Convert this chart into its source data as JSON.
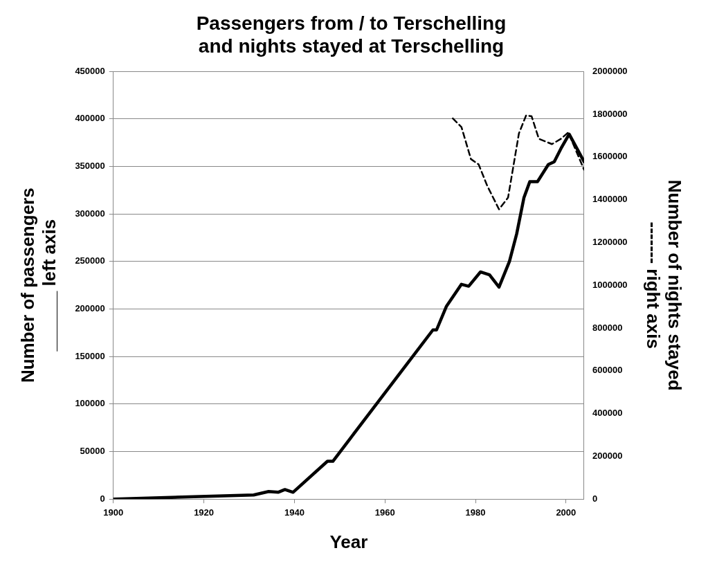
{
  "chart_data": {
    "type": "line",
    "title": "Passengers from / to Terschelling\nand nights stayed at Terschelling",
    "xlabel": "Year",
    "ylabel": "Number of passengers\n______ left axis",
    "y2label": "Number of nights stayed\n------- right axis",
    "xlim": [
      1900,
      2004
    ],
    "xticks": [
      1900,
      1920,
      1940,
      1960,
      1980,
      2000
    ],
    "ylim": [
      0,
      450000
    ],
    "yticks": [
      0,
      50000,
      100000,
      150000,
      200000,
      250000,
      300000,
      350000,
      400000,
      450000
    ],
    "y2lim": [
      0,
      2000000
    ],
    "y2ticks": [
      0,
      200000,
      400000,
      600000,
      800000,
      1000000,
      1200000,
      1400000,
      1600000,
      1800000,
      2000000
    ],
    "grid": "y",
    "legend": false,
    "marker": "none",
    "series": [
      {
        "color": "#000000",
        "line_style": "solid",
        "x": [
          1900,
          1931,
          1934.3,
          1936.4,
          1937.9,
          1939.7,
          1947.3,
          1948.5,
          1970.6,
          1971.4,
          1973.6,
          1976.9,
          1978.5,
          1981.1,
          1983.1,
          1985.2,
          1987.5,
          1989.1,
          1990.7,
          1992,
          1993.7,
          1996.1,
          1997.4,
          1998.9,
          2000.7,
          2004
        ],
        "values": [
          0,
          4300,
          8000,
          7200,
          10000,
          7200,
          39800,
          39800,
          178000,
          178000,
          203000,
          226000,
          224000,
          239000,
          236000,
          223000,
          250000,
          279000,
          317000,
          334000,
          334000,
          352000,
          355000,
          369000,
          384000,
          355000
        ]
      },
      {
        "color": "#000000",
        "line_style": "dashed",
        "axis": "y2",
        "x": [
          1975,
          1976.9,
          1979,
          1980.7,
          1982.6,
          1985.2,
          1987.2,
          1989.6,
          1991.2,
          1992.4,
          1994,
          1996.9,
          1998.9,
          2000.5,
          2004
        ],
        "values": [
          1780000,
          1740000,
          1590000,
          1565000,
          1465000,
          1355000,
          1410000,
          1710000,
          1795000,
          1790000,
          1685000,
          1660000,
          1685000,
          1715000,
          1540000
        ]
      }
    ]
  }
}
